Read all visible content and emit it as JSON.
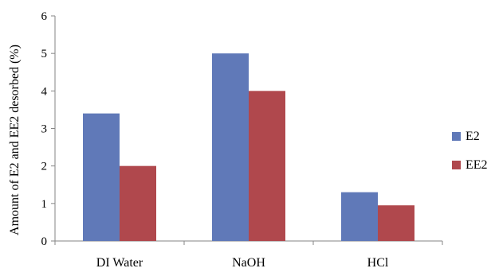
{
  "chart_data": {
    "type": "bar",
    "title": "",
    "xlabel": "",
    "ylabel": "Amount of E2 and EE2 desorbed (%)",
    "categories": [
      "DI Water",
      "NaOH",
      "HCl"
    ],
    "series": [
      {
        "name": "E2",
        "color": "#6079b8",
        "values": [
          3.4,
          5.0,
          1.3
        ]
      },
      {
        "name": "EE2",
        "color": "#b0484d",
        "values": [
          2.0,
          4.0,
          0.95
        ]
      }
    ],
    "ylim": [
      0,
      6
    ],
    "yticks": [
      "0",
      "1",
      "2",
      "3",
      "4",
      "5",
      "6"
    ],
    "grid": false,
    "legend_position": "right"
  }
}
